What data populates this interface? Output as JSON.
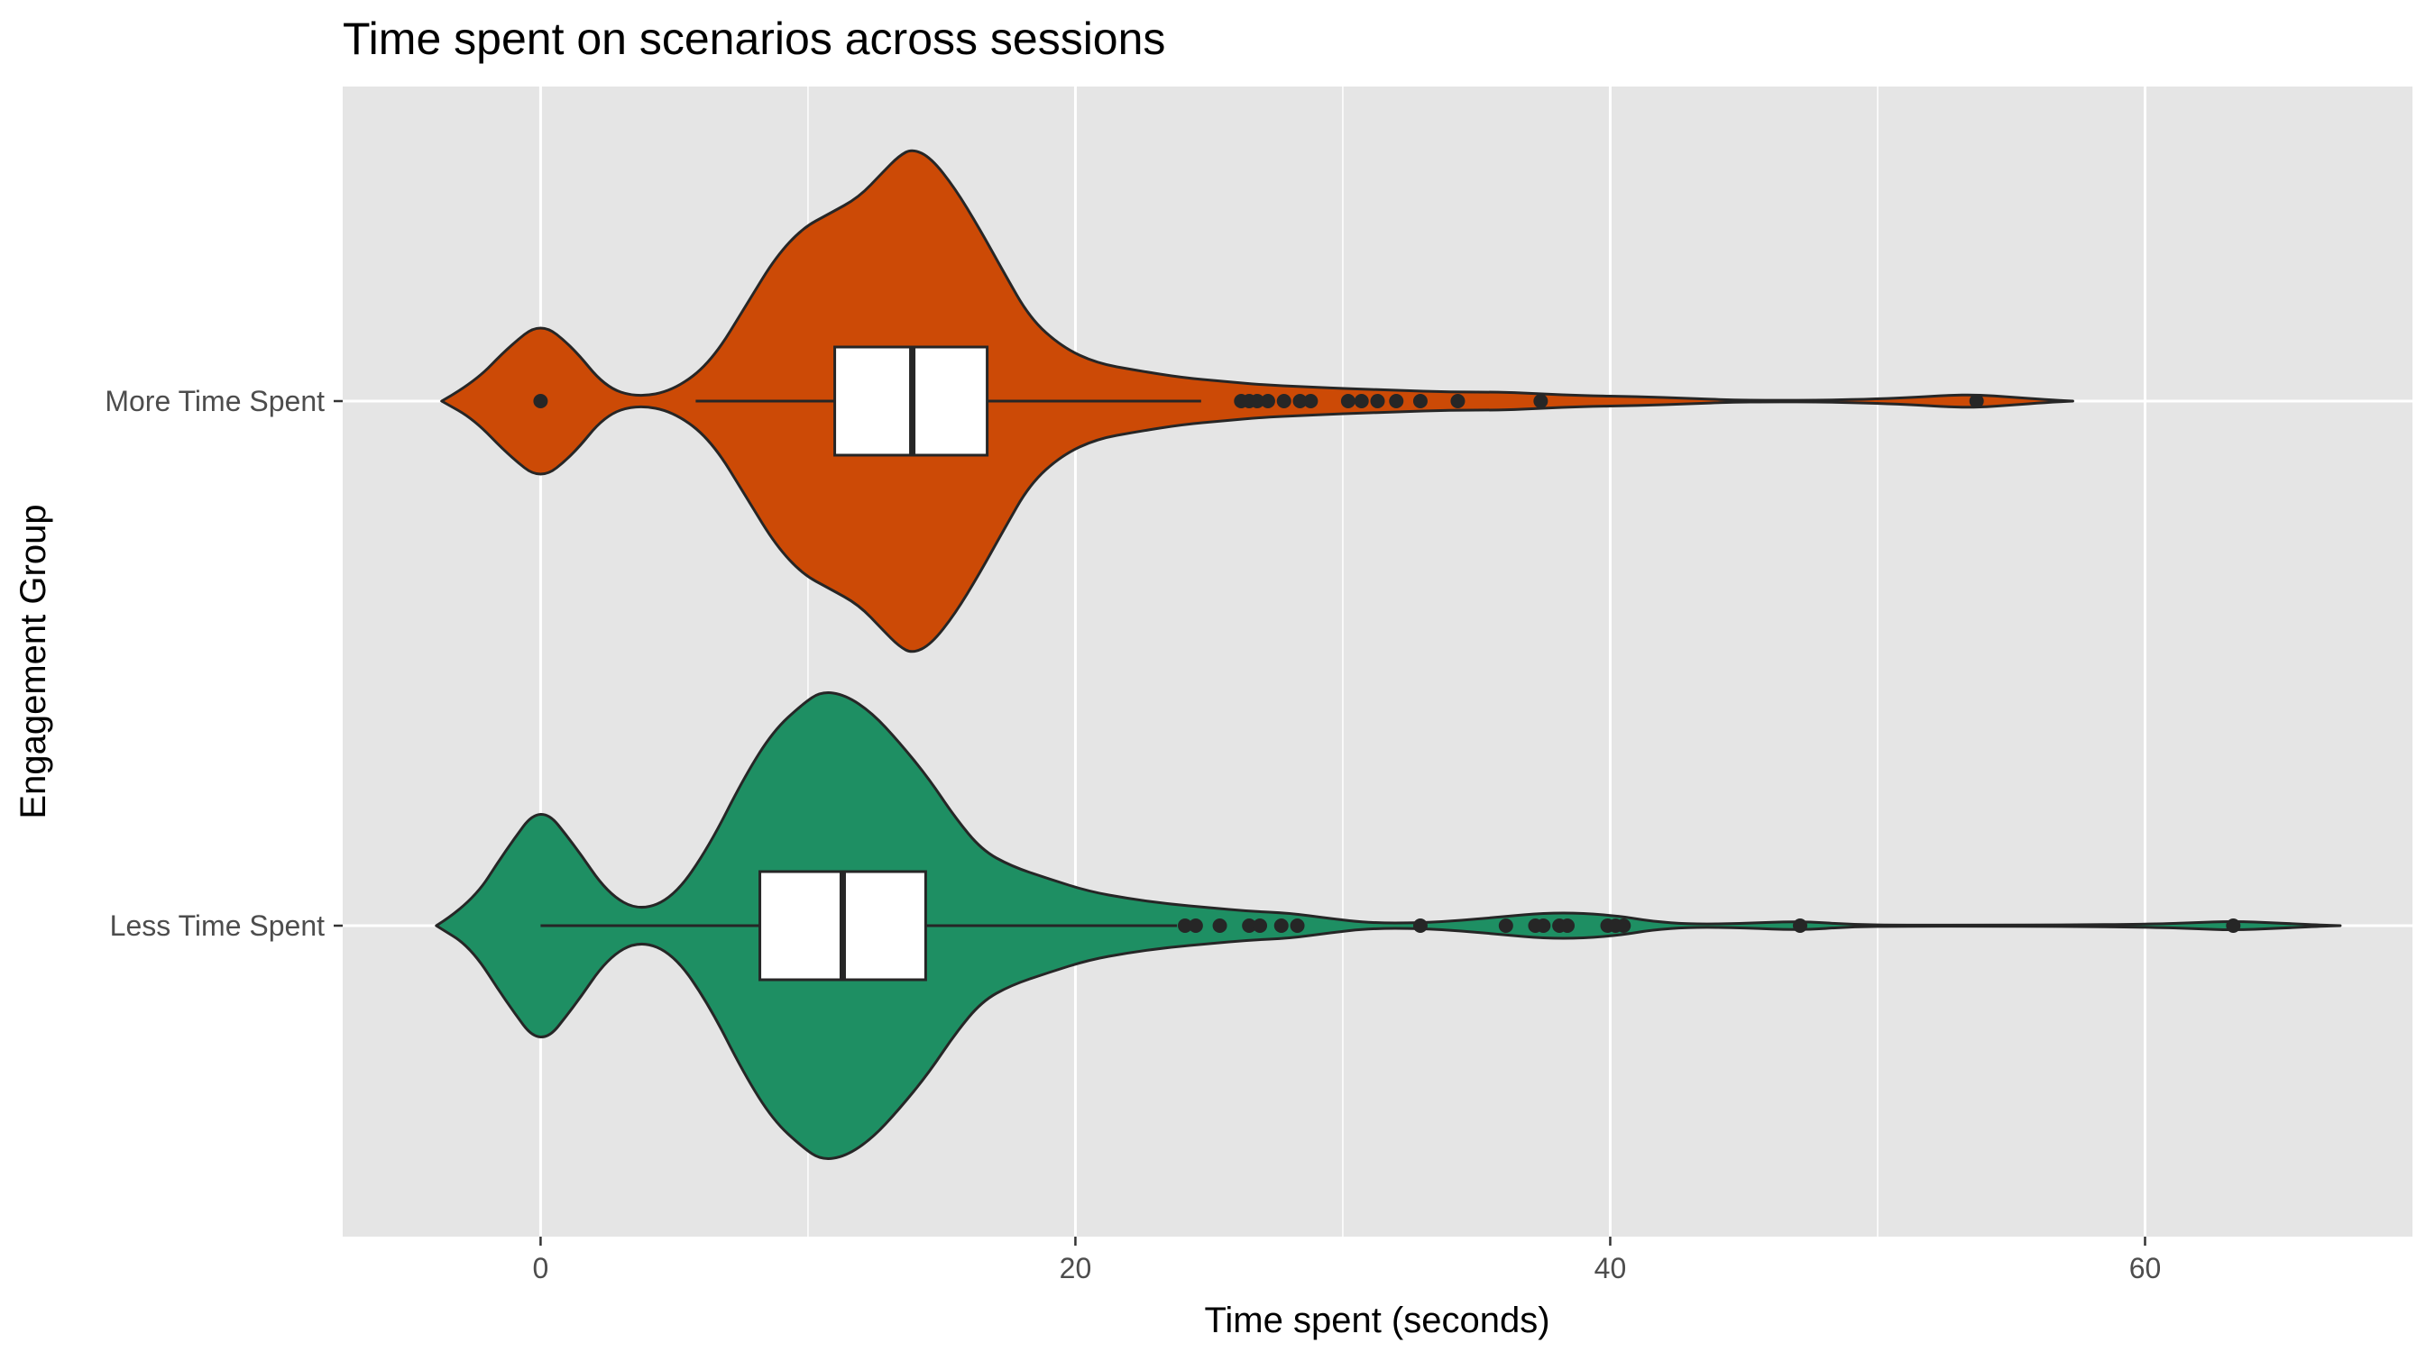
{
  "chart_data": {
    "type": "violin",
    "title": "Time spent on scenarios across sessions",
    "xlabel": "Time spent (seconds)",
    "ylabel": "Engagement Group",
    "xlim": [
      -7.4,
      70.0
    ],
    "x_ticks": [
      0,
      20,
      40,
      60
    ],
    "x_minor_ticks": [
      10,
      30,
      50,
      70
    ],
    "grid": true,
    "legend": "none",
    "colors": {
      "panel": "#E5E5E5",
      "grid": "#FFFFFF",
      "outline": "#262626",
      "box_fill": "#FFFFFF",
      "point": "#262626"
    },
    "categories": [
      "Less Time Spent",
      "More Time Spent"
    ],
    "series": [
      {
        "name": "More Time Spent",
        "color": "#CC4A06",
        "box": {
          "whisker_low": 5.8,
          "q1": 11.0,
          "median": 13.9,
          "q3": 16.7,
          "whisker_high": 24.7
        },
        "outliers": [
          0.0,
          26.2,
          26.5,
          26.8,
          27.2,
          27.8,
          28.4,
          28.8,
          30.2,
          30.7,
          31.3,
          32.0,
          32.9,
          34.3,
          37.4,
          53.7
        ],
        "density": {
          "x": [
            -3.7,
            -2.5,
            -1.2,
            0.0,
            1.2,
            2.4,
            3.6,
            5.0,
            6.4,
            7.8,
            8.8,
            9.8,
            10.8,
            11.9,
            12.8,
            13.4,
            13.9,
            14.6,
            15.5,
            16.4,
            17.3,
            18.3,
            19.5,
            20.8,
            22.3,
            24.0,
            25.5,
            27.0,
            28.5,
            30.0,
            32.0,
            34.0,
            36.0,
            37.4,
            39.0,
            41.0,
            43.0,
            44.5,
            46.0,
            48.0,
            50.0,
            51.5,
            52.6,
            53.7,
            55.0,
            56.3,
            57.3
          ],
          "width": [
            0.0,
            0.1,
            0.3,
            0.44,
            0.3,
            0.08,
            0.02,
            0.06,
            0.22,
            0.56,
            0.8,
            0.96,
            1.04,
            1.13,
            1.27,
            1.36,
            1.4,
            1.35,
            1.18,
            0.96,
            0.72,
            0.46,
            0.3,
            0.21,
            0.17,
            0.13,
            0.11,
            0.09,
            0.08,
            0.07,
            0.06,
            0.05,
            0.05,
            0.04,
            0.03,
            0.025,
            0.015,
            0.006,
            0.004,
            0.005,
            0.012,
            0.022,
            0.032,
            0.035,
            0.022,
            0.008,
            0.0
          ]
        }
      },
      {
        "name": "Less Time Spent",
        "color": "#1E8F63",
        "box": {
          "whisker_low": 0.0,
          "q1": 8.2,
          "median": 11.3,
          "q3": 14.4,
          "whisker_high": 23.8
        },
        "outliers": [
          24.1,
          24.5,
          25.4,
          26.5,
          26.9,
          27.7,
          28.3,
          32.9,
          36.1,
          37.2,
          37.5,
          38.1,
          38.4,
          39.9,
          40.2,
          40.5,
          47.1,
          63.3
        ],
        "density": {
          "x": [
            -3.9,
            -2.6,
            -1.3,
            0.0,
            1.3,
            2.5,
            3.7,
            5.0,
            6.3,
            7.6,
            8.7,
            9.8,
            10.5,
            11.4,
            12.4,
            13.4,
            14.5,
            15.5,
            16.5,
            17.6,
            19.0,
            20.5,
            22.0,
            23.5,
            25.0,
            26.5,
            28.0,
            29.5,
            31.0,
            32.9,
            34.5,
            36.0,
            37.5,
            39.0,
            40.5,
            41.5,
            43.0,
            45.0,
            47.1,
            49.0,
            51.0,
            54.0,
            57.0,
            60.0,
            61.8,
            63.3,
            64.9,
            66.5,
            67.3
          ],
          "width": [
            0.0,
            0.12,
            0.42,
            0.68,
            0.44,
            0.18,
            0.08,
            0.16,
            0.44,
            0.82,
            1.08,
            1.23,
            1.3,
            1.28,
            1.18,
            1.02,
            0.82,
            0.6,
            0.42,
            0.33,
            0.26,
            0.19,
            0.15,
            0.12,
            0.1,
            0.08,
            0.07,
            0.04,
            0.015,
            0.015,
            0.03,
            0.05,
            0.07,
            0.07,
            0.05,
            0.025,
            0.008,
            0.012,
            0.025,
            0.006,
            0.003,
            0.003,
            0.004,
            0.008,
            0.016,
            0.025,
            0.015,
            0.004,
            0.0
          ]
        }
      }
    ]
  }
}
